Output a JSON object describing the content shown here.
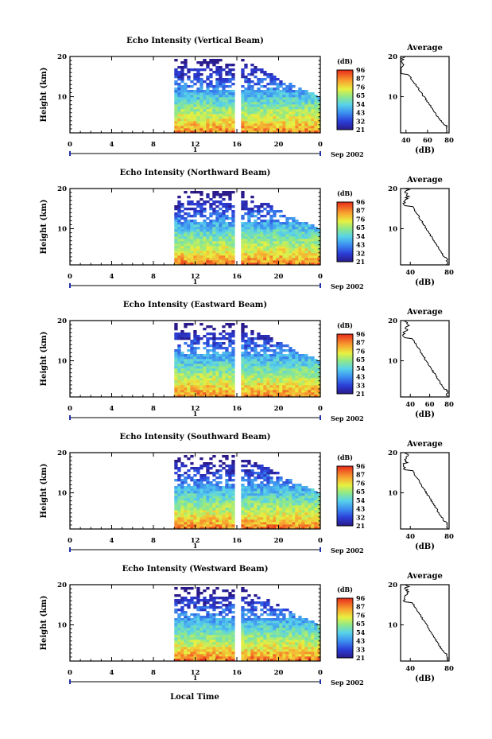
{
  "figure": {
    "xlabel": "Local Time",
    "date_label": "Sep 2002",
    "day_label": "1",
    "colorbar_unit": "(dB)",
    "average_title": "Average",
    "average_xlabel": "(dB)"
  },
  "chart_data": [
    {
      "type": "heatmap",
      "title": "Echo Intensity (Vertical Beam)",
      "ylabel": "Height (km)",
      "x_ticks": [
        "0",
        "4",
        "8",
        "12",
        "16",
        "20",
        "0"
      ],
      "y_ticks": [
        "10",
        "20"
      ],
      "xlim": [
        0,
        24
      ],
      "ylim": [
        1,
        20
      ],
      "data_start_hour": 10,
      "data_gap_hour": 16,
      "colorbar_ticks": [
        "96",
        "87",
        "76",
        "65",
        "54",
        "43",
        "32",
        "21"
      ],
      "average_profile": {
        "x_ticks": [
          "40",
          "60",
          "80"
        ],
        "xlim": [
          35,
          80
        ]
      }
    },
    {
      "type": "heatmap",
      "title": "Echo Intensity (Northward Beam)",
      "ylabel": "Height (km)",
      "x_ticks": [
        "0",
        "4",
        "8",
        "12",
        "16",
        "20",
        "0"
      ],
      "y_ticks": [
        "10",
        "20"
      ],
      "xlim": [
        0,
        24
      ],
      "ylim": [
        1,
        20
      ],
      "data_start_hour": 10,
      "data_gap_hour": 16,
      "colorbar_ticks": [
        "96",
        "87",
        "76",
        "65",
        "54",
        "43",
        "32",
        "21"
      ],
      "average_profile": {
        "x_ticks": [
          "40",
          "80"
        ],
        "xlim": [
          30,
          80
        ]
      }
    },
    {
      "type": "heatmap",
      "title": "Echo Intensity (Eastward Beam)",
      "ylabel": "Height (km)",
      "x_ticks": [
        "0",
        "4",
        "8",
        "12",
        "16",
        "20",
        "0"
      ],
      "y_ticks": [
        "10",
        "20"
      ],
      "xlim": [
        0,
        24
      ],
      "ylim": [
        1,
        20
      ],
      "data_start_hour": 10,
      "data_gap_hour": 16,
      "colorbar_ticks": [
        "96",
        "87",
        "76",
        "65",
        "54",
        "43",
        "33",
        "21"
      ],
      "average_profile": {
        "x_ticks": [
          "40",
          "60",
          "80"
        ],
        "xlim": [
          30,
          80
        ]
      }
    },
    {
      "type": "heatmap",
      "title": "Echo Intensity (Southward Beam)",
      "ylabel": "Height (km)",
      "x_ticks": [
        "0",
        "4",
        "8",
        "12",
        "16",
        "20",
        "0"
      ],
      "y_ticks": [
        "10",
        "20"
      ],
      "xlim": [
        0,
        24
      ],
      "ylim": [
        1,
        20
      ],
      "data_start_hour": 10,
      "data_gap_hour": 16,
      "colorbar_ticks": [
        "96",
        "87",
        "76",
        "65",
        "54",
        "43",
        "32",
        "21"
      ],
      "average_profile": {
        "x_ticks": [
          "40",
          "80"
        ],
        "xlim": [
          30,
          80
        ]
      }
    },
    {
      "type": "heatmap",
      "title": "Echo Intensity (Westward Beam)",
      "ylabel": "Height (km)",
      "x_ticks": [
        "0",
        "4",
        "8",
        "12",
        "16",
        "20",
        "0"
      ],
      "y_ticks": [
        "10",
        "20"
      ],
      "xlim": [
        0,
        24
      ],
      "ylim": [
        1,
        20
      ],
      "data_start_hour": 10,
      "data_gap_hour": 16,
      "colorbar_ticks": [
        "96",
        "87",
        "76",
        "65",
        "54",
        "43",
        "33",
        "21"
      ],
      "average_profile": {
        "x_ticks": [
          "40",
          "80"
        ],
        "xlim": [
          30,
          80
        ]
      }
    }
  ]
}
